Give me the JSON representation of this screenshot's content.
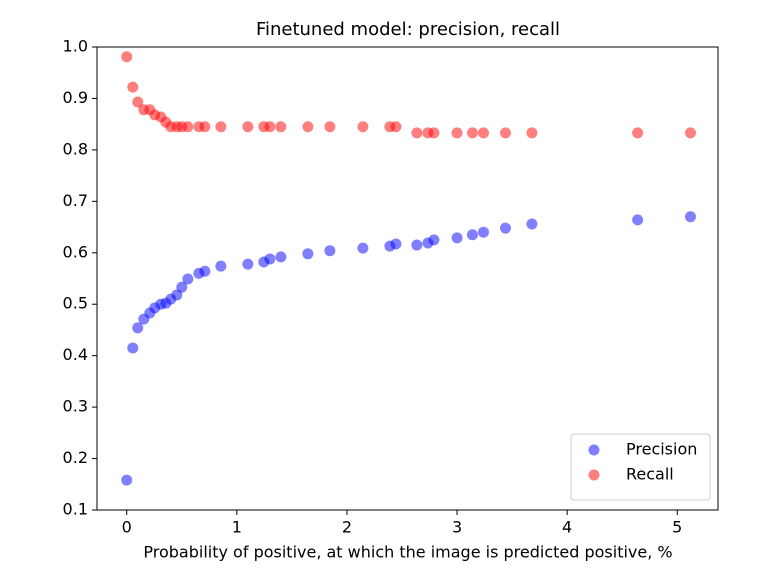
{
  "chart_data": {
    "type": "scatter",
    "title": "Finetuned model: precision, recall",
    "xlabel": "Probability of positive, at which the image is predicted positive, %",
    "x": [
      0,
      0.055,
      0.1,
      0.155,
      0.21,
      0.255,
      0.31,
      0.355,
      0.4,
      0.455,
      0.5,
      0.555,
      0.655,
      0.71,
      0.855,
      1.1,
      1.245,
      1.3,
      1.4,
      1.645,
      1.845,
      2.145,
      2.39,
      2.445,
      2.635,
      2.735,
      2.79,
      3.0,
      3.14,
      3.24,
      3.44,
      3.68,
      4.64,
      5.12
    ],
    "series": [
      {
        "name": "Precision",
        "color": "#0000ff",
        "values": [
          0.158,
          0.415,
          0.454,
          0.471,
          0.483,
          0.493,
          0.5,
          0.502,
          0.51,
          0.518,
          0.533,
          0.549,
          0.56,
          0.564,
          0.574,
          0.578,
          0.582,
          0.588,
          0.592,
          0.598,
          0.604,
          0.609,
          0.613,
          0.617,
          0.615,
          0.619,
          0.625,
          0.629,
          0.635,
          0.64,
          0.648,
          0.656,
          0.664,
          0.67
        ]
      },
      {
        "name": "Recall",
        "color": "#ff0000",
        "values": [
          0.981,
          0.922,
          0.893,
          0.878,
          0.878,
          0.868,
          0.864,
          0.854,
          0.845,
          0.845,
          0.845,
          0.845,
          0.845,
          0.845,
          0.845,
          0.845,
          0.845,
          0.845,
          0.845,
          0.845,
          0.845,
          0.845,
          0.845,
          0.845,
          0.833,
          0.833,
          0.833,
          0.833,
          0.833,
          0.833,
          0.833,
          0.833,
          0.833,
          0.833
        ]
      }
    ],
    "xlim": [
      -0.27,
      5.37
    ],
    "ylim": [
      0.1,
      1.0
    ],
    "xticks": [
      0,
      1,
      2,
      3,
      4,
      5
    ],
    "yticks": [
      0.1,
      0.2,
      0.3,
      0.4,
      0.5,
      0.6,
      0.7,
      0.8,
      0.9,
      {
        "value": 1.0,
        "label": "1.0"
      }
    ],
    "legend": "lower right"
  }
}
